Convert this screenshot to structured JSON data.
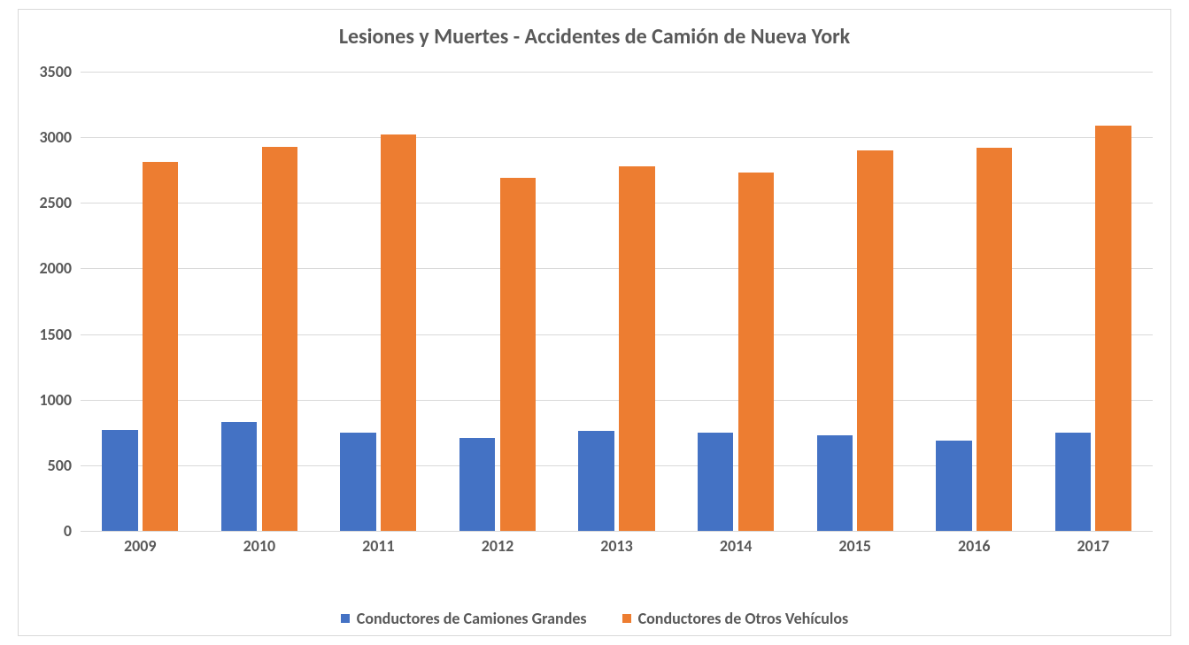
{
  "chart": {
    "type": "bar",
    "title": "Lesiones y Muertes - Accidentes de Camión de Nueva York",
    "title_fontsize": 24,
    "title_color": "#595959",
    "background_color": "#ffffff",
    "border_color": "#d9d9d9",
    "grid_color": "#d9d9d9",
    "categories": [
      "2009",
      "2010",
      "2011",
      "2012",
      "2013",
      "2014",
      "2015",
      "2016",
      "2017"
    ],
    "series": [
      {
        "name": "Conductores de Camiones Grandes",
        "color": "#4472c4",
        "values": [
          770,
          830,
          750,
          710,
          760,
          750,
          730,
          690,
          750
        ]
      },
      {
        "name": "Conductores de Otros Vehículos",
        "color": "#ed7d31",
        "values": [
          2810,
          2930,
          3020,
          2690,
          2780,
          2730,
          2900,
          2920,
          3090
        ]
      }
    ],
    "ylim": [
      0,
      3500
    ],
    "ytick_step": 500,
    "axis_label_fontsize": 18,
    "axis_label_color": "#595959",
    "legend_fontsize": 18,
    "bar_width": 0.3,
    "bar_gap": 0.04
  }
}
